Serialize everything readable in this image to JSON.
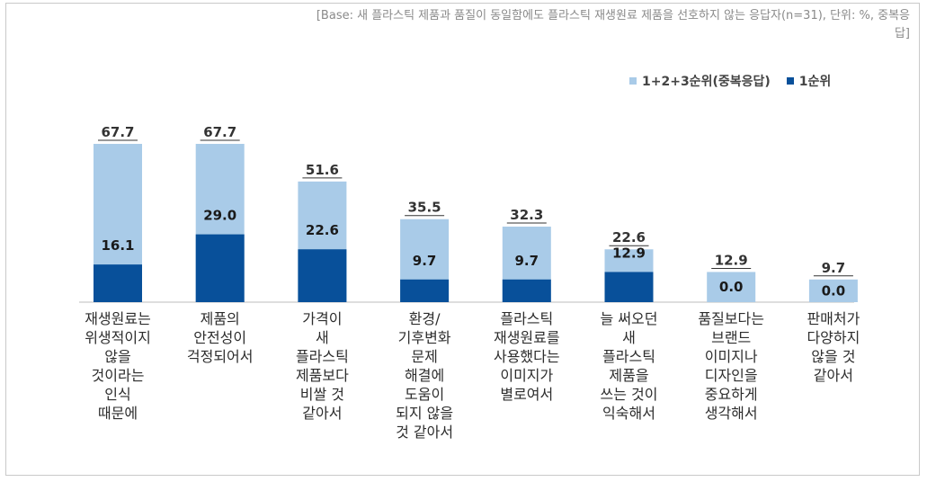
{
  "base_note": "[Base: 새 플라스틱 제품과 품질이 동일함에도 플라스틱 재생원료 제품을 선호하지 않는 응답자(n=31), 단위: %, 중복응답]",
  "colors": {
    "light": "#a9cbe8",
    "dark": "#08509a"
  },
  "chart_data": {
    "type": "bar",
    "stacked": "overlay",
    "title": "",
    "xlabel": "",
    "ylabel": "",
    "ylim": [
      0,
      70
    ],
    "grid": false,
    "legend_position": "top-right",
    "categories": [
      "재생원료는\n위생적이지\n않을\n것이라는\n인식\n때문에",
      "제품의\n안전성이\n걱정되어서",
      "가격이\n새\n플라스틱\n제품보다\n비쌀 것\n같아서",
      "환경/\n기후변화\n문제\n해결에\n도움이\n되지 않을\n것 같아서",
      "플라스틱\n재생원료를\n사용했다는\n이미지가\n별로여서",
      "늘 써오던\n새\n플라스틱\n제품을\n쓰는 것이\n익숙해서",
      "품질보다는\n브랜드\n이미지나\n디자인을\n중요하게\n생각해서",
      "판매처가\n다양하지\n않을 것\n같아서"
    ],
    "series": [
      {
        "name": "1+2+3순위(중복응답)",
        "values": [
          67.7,
          67.7,
          51.6,
          35.5,
          32.3,
          22.6,
          12.9,
          9.7
        ],
        "labels": [
          "67.7",
          "67.7",
          "51.6",
          "35.5",
          "32.3",
          "22.6",
          "12.9",
          "9.7"
        ]
      },
      {
        "name": "1순위",
        "values": [
          16.1,
          29.0,
          22.6,
          9.7,
          9.7,
          12.9,
          0.0,
          0.0
        ],
        "labels": [
          "16.1",
          "29.0",
          "22.6",
          "9.7",
          "9.7",
          "12.9",
          "0.0",
          "0.0"
        ]
      }
    ]
  }
}
